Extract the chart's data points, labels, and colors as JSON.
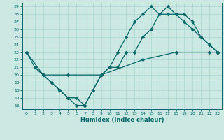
{
  "xlabel": "Humidex (Indice chaleur)",
  "bg_color": "#cbe8e3",
  "line_color": "#006666",
  "grid_color": "#a8d8d0",
  "spine_color": "#006666",
  "xlim": [
    -0.5,
    23.5
  ],
  "ylim": [
    15.5,
    29.5
  ],
  "yticks": [
    16,
    17,
    18,
    19,
    20,
    21,
    22,
    23,
    24,
    25,
    26,
    27,
    28,
    29
  ],
  "xticks": [
    0,
    1,
    2,
    3,
    4,
    5,
    6,
    7,
    8,
    9,
    10,
    11,
    12,
    13,
    14,
    15,
    16,
    17,
    18,
    19,
    20,
    21,
    22,
    23
  ],
  "line1_x": [
    0,
    1,
    2,
    3,
    4,
    5,
    6,
    7,
    8,
    9,
    10,
    11,
    12,
    13,
    14,
    15,
    16,
    17,
    18,
    19,
    20,
    21,
    22,
    23
  ],
  "line1_y": [
    23,
    21,
    20,
    19,
    18,
    17,
    16,
    16,
    18,
    20,
    21,
    23,
    25,
    27,
    28,
    29,
    28,
    29,
    28,
    27,
    26,
    25,
    24,
    23
  ],
  "line2_x": [
    1,
    2,
    3,
    4,
    5,
    6,
    7,
    8,
    9,
    10,
    11,
    12,
    13,
    14,
    15,
    16,
    17,
    18,
    19,
    20,
    21,
    22,
    23
  ],
  "line2_y": [
    21,
    20,
    19,
    18,
    17,
    17,
    16,
    18,
    20,
    21,
    21,
    23,
    23,
    25,
    26,
    28,
    28,
    28,
    28,
    27,
    25,
    24,
    23
  ],
  "line3_x": [
    0,
    2,
    5,
    9,
    14,
    18,
    22,
    23
  ],
  "line3_y": [
    23,
    20,
    20,
    20,
    22,
    23,
    23,
    23
  ],
  "xlabel_fontsize": 6,
  "tick_fontsize": 4.5,
  "linewidth": 0.9,
  "markersize": 2.5
}
